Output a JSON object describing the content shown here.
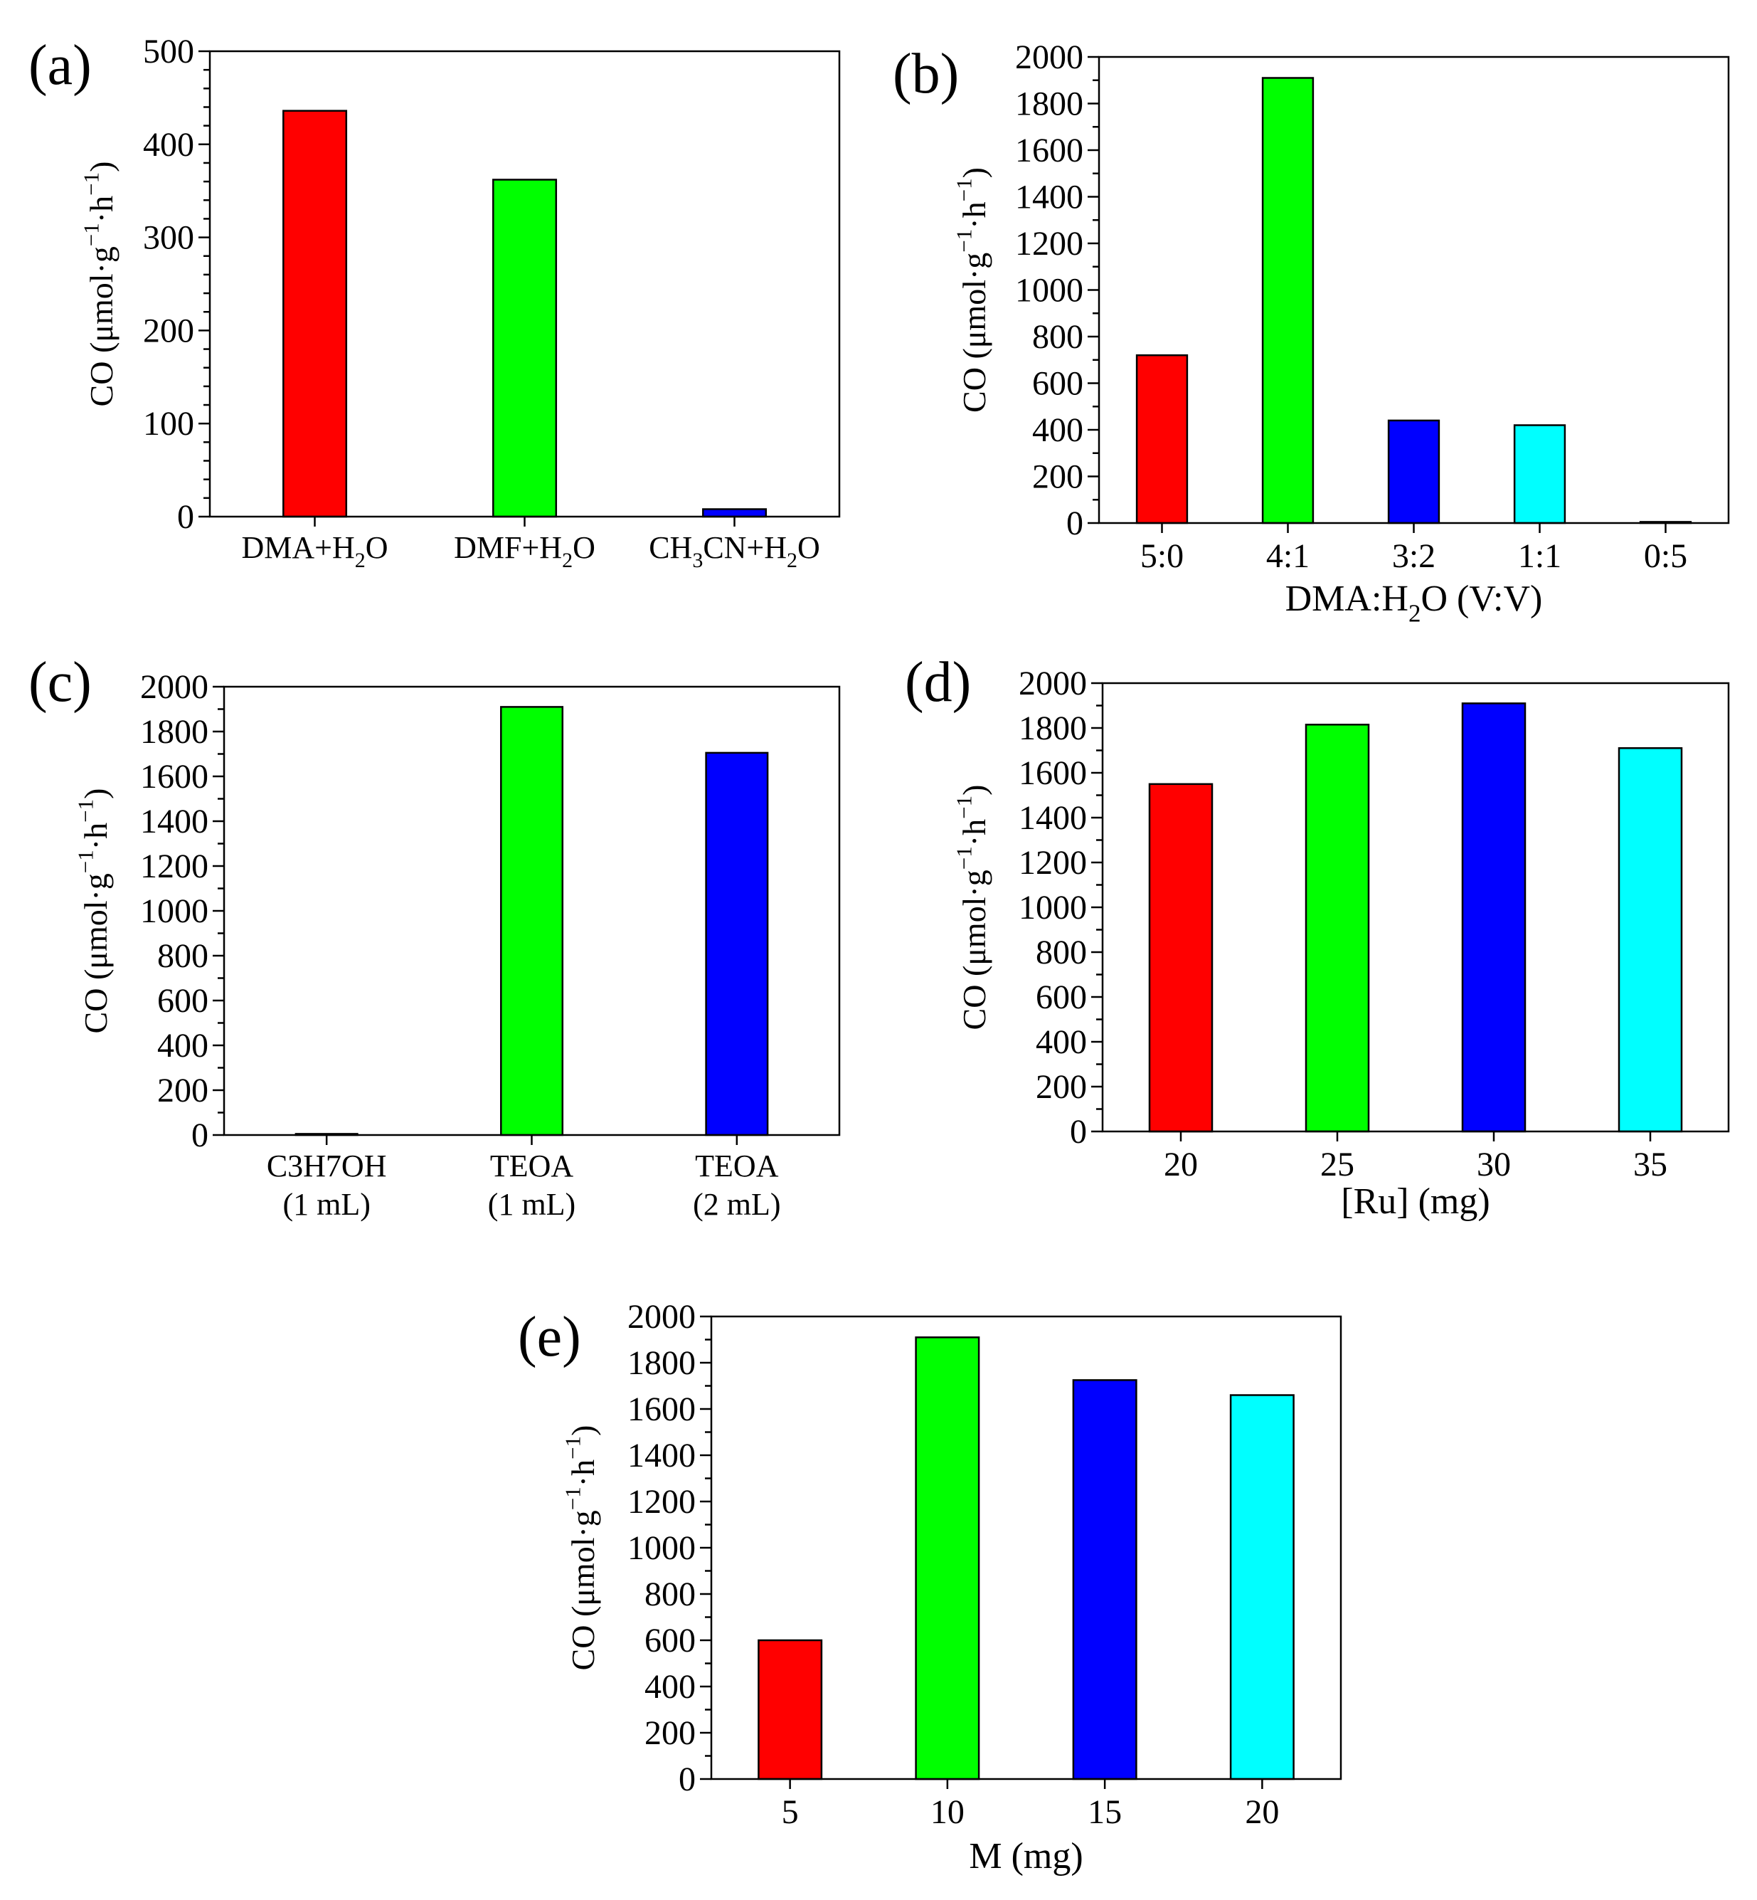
{
  "chart_data": [
    {
      "panel": "(a)",
      "type": "bar",
      "categories": [
        "DMA+H_2O",
        "DMF+H_2O",
        "CH_3CN+H_2O"
      ],
      "category_sublabels": [
        "",
        "",
        ""
      ],
      "values": [
        436,
        362,
        8
      ],
      "colors": [
        "#ff0000",
        "#00ff00",
        "#0000ff"
      ],
      "ylabel": "CO (μmol·g^{−1}·h^{−1})",
      "xlabel": "",
      "ylim": [
        0,
        500
      ],
      "yticks": [
        0,
        100,
        200,
        300,
        400,
        500
      ],
      "minor_per_major": 4
    },
    {
      "panel": "(b)",
      "type": "bar",
      "categories": [
        "5:0",
        "4:1",
        "3:2",
        "1:1",
        "0:5"
      ],
      "category_sublabels": [
        "",
        "",
        "",
        "",
        ""
      ],
      "values": [
        720,
        1910,
        440,
        420,
        5
      ],
      "colors": [
        "#ff0000",
        "#00ff00",
        "#0000ff",
        "#00ffff",
        "#0000ff"
      ],
      "ylabel": "CO (μmol·g^{−1}·h^{−1})",
      "xlabel": "DMA:H_2O (V:V)",
      "ylim": [
        0,
        2000
      ],
      "yticks": [
        0,
        200,
        400,
        600,
        800,
        1000,
        1200,
        1400,
        1600,
        1800,
        2000
      ],
      "minor_per_major": 1
    },
    {
      "panel": "(c)",
      "type": "bar",
      "categories": [
        "C3H7OH",
        "TEOA",
        "TEOA"
      ],
      "category_sublabels": [
        "(1 mL)",
        "(1 mL)",
        "(2 mL)"
      ],
      "values": [
        5,
        1910,
        1705
      ],
      "colors": [
        "#ff0000",
        "#00ff00",
        "#0000ff"
      ],
      "ylabel": "CO (μmol·g^{−1}·h^{−1})",
      "xlabel": "",
      "ylim": [
        0,
        2000
      ],
      "yticks": [
        0,
        200,
        400,
        600,
        800,
        1000,
        1200,
        1400,
        1600,
        1800,
        2000
      ],
      "minor_per_major": 1
    },
    {
      "panel": "(d)",
      "type": "bar",
      "categories": [
        "20",
        "25",
        "30",
        "35"
      ],
      "category_sublabels": [
        "",
        "",
        "",
        ""
      ],
      "values": [
        1550,
        1815,
        1910,
        1710
      ],
      "colors": [
        "#ff0000",
        "#00ff00",
        "#0000ff",
        "#00ffff"
      ],
      "ylabel": "CO (μmol·g^{−1}·h^{−1})",
      "xlabel": "[Ru] (mg)",
      "ylim": [
        0,
        2000
      ],
      "yticks": [
        0,
        200,
        400,
        600,
        800,
        1000,
        1200,
        1400,
        1600,
        1800,
        2000
      ],
      "minor_per_major": 1
    },
    {
      "panel": "(e)",
      "type": "bar",
      "categories": [
        "5",
        "10",
        "15",
        "20"
      ],
      "category_sublabels": [
        "",
        "",
        "",
        ""
      ],
      "values": [
        600,
        1910,
        1725,
        1660
      ],
      "colors": [
        "#ff0000",
        "#00ff00",
        "#0000ff",
        "#00ffff"
      ],
      "ylabel": "CO (μmol·g^{−1}·h^{−1})",
      "xlabel": "M (mg)",
      "ylim": [
        0,
        2000
      ],
      "yticks": [
        0,
        200,
        400,
        600,
        800,
        1000,
        1200,
        1400,
        1600,
        1800,
        2000
      ],
      "minor_per_major": 1
    }
  ]
}
